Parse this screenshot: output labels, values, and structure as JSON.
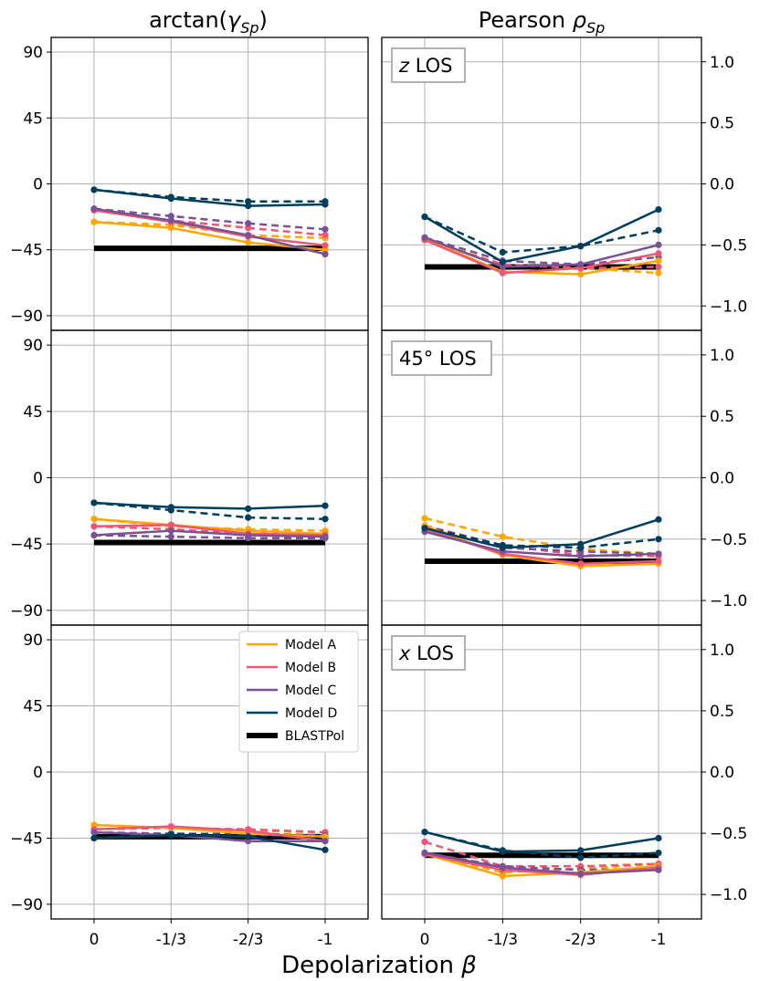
{
  "chart_data": {
    "type": "line",
    "x_title_prefix": "Depolarization",
    "x_title_symbol": "β",
    "x_categories": [
      "0",
      "-1/3",
      "-2/3",
      "-1"
    ],
    "columns": [
      {
        "key": "left",
        "title_prefix": "arctan(",
        "title_symbol": "γ",
        "title_sub": "Sp",
        "title_suffix": ")",
        "ylim": [
          -100,
          100
        ],
        "yticks": [
          90,
          45,
          0,
          -45,
          -90
        ],
        "ytick_labels": [
          "90",
          "45",
          "0",
          "−45",
          "−90"
        ]
      },
      {
        "key": "right",
        "title_prefix": "Pearson ",
        "title_symbol": "ρ",
        "title_sub": "Sp",
        "title_suffix": "",
        "ylim": [
          -1.2,
          1.2
        ],
        "yticks": [
          1.0,
          0.5,
          0.0,
          -0.5,
          -1.0
        ],
        "ytick_labels": [
          "1.0",
          "0.5",
          "0.0",
          "−0.5",
          "−1.0"
        ]
      }
    ],
    "models": [
      {
        "name": "Model A",
        "color": "#ffa600"
      },
      {
        "name": "Model B",
        "color": "#ef5675"
      },
      {
        "name": "Model C",
        "color": "#7a5195"
      },
      {
        "name": "Model D",
        "color": "#003f5c"
      },
      {
        "name": "BLASTPol",
        "color": "#000000"
      }
    ],
    "blastpol": {
      "left": -44,
      "right": -0.68
    },
    "rows": [
      {
        "los_symbol": "z",
        "los_text": " LOS",
        "left": {
          "solid": {
            "Model A": [
              -26,
              -30,
              -40,
              -45
            ],
            "Model B": [
              -18,
              -26,
              -36,
              -42
            ],
            "Model C": [
              -17,
              -25,
              -35,
              -48
            ],
            "Model D": [
              -4,
              -10,
              -15,
              -14
            ]
          },
          "dashed": {
            "Model A": [
              -26,
              -28,
              -35,
              -37
            ],
            "Model B": [
              -18,
              -25,
              -30,
              -35
            ],
            "Model C": [
              -17,
              -22,
              -27,
              -31
            ],
            "Model D": [
              -4,
              -9,
              -12,
              -12
            ]
          }
        },
        "right": {
          "solid": {
            "Model A": [
              -0.45,
              -0.72,
              -0.74,
              -0.63
            ],
            "Model B": [
              -0.46,
              -0.73,
              -0.69,
              -0.57
            ],
            "Model C": [
              -0.44,
              -0.68,
              -0.66,
              -0.5
            ],
            "Model D": [
              -0.27,
              -0.64,
              -0.51,
              -0.21
            ]
          },
          "dashed": {
            "Model A": [
              -0.45,
              -0.66,
              -0.69,
              -0.73
            ],
            "Model B": [
              -0.46,
              -0.66,
              -0.69,
              -0.68
            ],
            "Model C": [
              -0.44,
              -0.63,
              -0.66,
              -0.6
            ],
            "Model D": [
              -0.27,
              -0.56,
              -0.51,
              -0.38
            ]
          }
        }
      },
      {
        "los_symbol": "",
        "los_text": "45° LOS",
        "left": {
          "solid": {
            "Model A": [
              -28,
              -32,
              -36,
              -38
            ],
            "Model B": [
              -33,
              -32,
              -38,
              -39
            ],
            "Model C": [
              -39,
              -36,
              -39,
              -40
            ],
            "Model D": [
              -17,
              -20,
              -21,
              -19
            ]
          },
          "dashed": {
            "Model A": [
              -28,
              -33,
              -35,
              -36
            ],
            "Model B": [
              -33,
              -35,
              -38,
              -38
            ],
            "Model C": [
              -39,
              -40,
              -41,
              -41
            ],
            "Model D": [
              -17,
              -22,
              -27,
              -28
            ]
          }
        },
        "right": {
          "solid": {
            "Model A": [
              -0.39,
              -0.63,
              -0.72,
              -0.7
            ],
            "Model B": [
              -0.42,
              -0.62,
              -0.7,
              -0.68
            ],
            "Model C": [
              -0.44,
              -0.6,
              -0.64,
              -0.62
            ],
            "Model D": [
              -0.41,
              -0.57,
              -0.54,
              -0.34
            ]
          },
          "dashed": {
            "Model A": [
              -0.33,
              -0.48,
              -0.58,
              -0.62
            ],
            "Model B": [
              -0.39,
              -0.55,
              -0.63,
              -0.64
            ],
            "Model C": [
              -0.4,
              -0.57,
              -0.6,
              -0.62
            ],
            "Model D": [
              -0.4,
              -0.55,
              -0.57,
              -0.5
            ]
          }
        }
      },
      {
        "los_symbol": "x",
        "los_text": " LOS",
        "left": {
          "solid": {
            "Model A": [
              -36,
              -38,
              -42,
              -44
            ],
            "Model B": [
              -39,
              -37,
              -40,
              -47
            ],
            "Model C": [
              -41,
              -43,
              -47,
              -47
            ],
            "Model D": [
              -45,
              -43,
              -44,
              -53
            ]
          },
          "dashed": {
            "Model A": [
              -36,
              -38,
              -40,
              -41
            ],
            "Model B": [
              -39,
              -38,
              -39,
              -41
            ],
            "Model C": [
              -41,
              -42,
              -42,
              -43
            ],
            "Model D": [
              -45,
              -42,
              -43,
              -45
            ]
          }
        },
        "right": {
          "solid": {
            "Model A": [
              -0.67,
              -0.85,
              -0.82,
              -0.77
            ],
            "Model B": [
              -0.67,
              -0.8,
              -0.84,
              -0.78
            ],
            "Model C": [
              -0.66,
              -0.78,
              -0.83,
              -0.8
            ],
            "Model D": [
              -0.49,
              -0.65,
              -0.64,
              -0.54
            ]
          },
          "dashed": {
            "Model A": [
              -0.67,
              -0.82,
              -0.79,
              -0.75
            ],
            "Model B": [
              -0.57,
              -0.77,
              -0.77,
              -0.75
            ],
            "Model C": [
              -0.66,
              -0.77,
              -0.8,
              -0.79
            ],
            "Model D": [
              -0.49,
              -0.64,
              -0.7,
              -0.66
            ]
          }
        }
      }
    ]
  }
}
